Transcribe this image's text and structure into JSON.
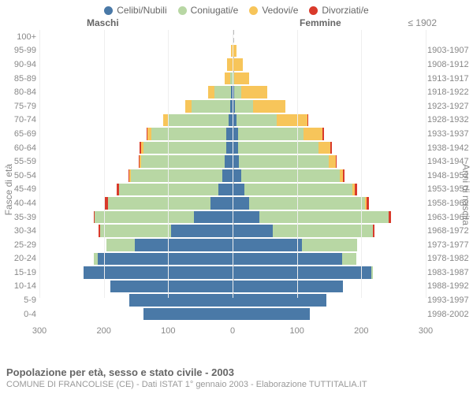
{
  "type": "population-pyramid",
  "legend": [
    {
      "label": "Celibi/Nubili",
      "color": "#4a79a7"
    },
    {
      "label": "Coniugati/e",
      "color": "#b8d7a4"
    },
    {
      "label": "Vedovi/e",
      "color": "#f7c55a"
    },
    {
      "label": "Divorziati/e",
      "color": "#d93a2b"
    }
  ],
  "header": {
    "male": "Maschi",
    "female": "Femmine",
    "birth_top": "≤ 1902"
  },
  "yaxis_left_title": "Fasce di età",
  "yaxis_right_title": "Anni di nascita",
  "xaxis": {
    "max": 300,
    "ticks": [
      300,
      200,
      100,
      0,
      100,
      200,
      300
    ]
  },
  "footer": {
    "title": "Popolazione per età, sesso e stato civile - 2003",
    "sub": "COMUNE DI FRANCOLISE (CE) - Dati ISTAT 1° gennaio 2003 - Elaborazione TUTTITALIA.IT"
  },
  "colors": {
    "single": "#4a79a7",
    "married": "#b8d7a4",
    "widowed": "#f7c55a",
    "divorced": "#d93a2b",
    "bg": "#ffffff",
    "grid": "#eeeeee",
    "centerline": "#bbbbbb",
    "text": "#888888"
  },
  "rows": [
    {
      "age": "100+",
      "birth": "",
      "m": [
        0,
        0,
        0,
        0
      ],
      "f": [
        0,
        0,
        0,
        0
      ]
    },
    {
      "age": "95-99",
      "birth": "1903-1907",
      "m": [
        0,
        0,
        2,
        0
      ],
      "f": [
        0,
        0,
        6,
        0
      ]
    },
    {
      "age": "90-94",
      "birth": "1908-1912",
      "m": [
        0,
        0,
        8,
        0
      ],
      "f": [
        0,
        0,
        16,
        0
      ]
    },
    {
      "age": "85-89",
      "birth": "1913-1917",
      "m": [
        0,
        4,
        8,
        0
      ],
      "f": [
        0,
        2,
        24,
        0
      ]
    },
    {
      "age": "80-84",
      "birth": "1918-1922",
      "m": [
        2,
        26,
        10,
        0
      ],
      "f": [
        2,
        12,
        40,
        0
      ]
    },
    {
      "age": "75-79",
      "birth": "1923-1927",
      "m": [
        4,
        60,
        10,
        0
      ],
      "f": [
        4,
        28,
        50,
        0
      ]
    },
    {
      "age": "70-74",
      "birth": "1928-1932",
      "m": [
        6,
        94,
        8,
        0
      ],
      "f": [
        6,
        62,
        48,
        2
      ]
    },
    {
      "age": "65-69",
      "birth": "1933-1937",
      "m": [
        10,
        116,
        6,
        2
      ],
      "f": [
        8,
        102,
        30,
        2
      ]
    },
    {
      "age": "60-64",
      "birth": "1938-1942",
      "m": [
        10,
        128,
        4,
        2
      ],
      "f": [
        8,
        126,
        18,
        2
      ]
    },
    {
      "age": "55-59",
      "birth": "1943-1947",
      "m": [
        12,
        130,
        2,
        2
      ],
      "f": [
        10,
        140,
        10,
        2
      ]
    },
    {
      "age": "50-54",
      "birth": "1948-1952",
      "m": [
        16,
        142,
        2,
        2
      ],
      "f": [
        14,
        152,
        6,
        2
      ]
    },
    {
      "age": "45-49",
      "birth": "1953-1957",
      "m": [
        22,
        154,
        0,
        4
      ],
      "f": [
        18,
        168,
        4,
        4
      ]
    },
    {
      "age": "40-44",
      "birth": "1958-1962",
      "m": [
        34,
        160,
        0,
        4
      ],
      "f": [
        26,
        180,
        2,
        4
      ]
    },
    {
      "age": "35-39",
      "birth": "1963-1967",
      "m": [
        60,
        154,
        0,
        2
      ],
      "f": [
        42,
        200,
        0,
        4
      ]
    },
    {
      "age": "30-34",
      "birth": "1968-1972",
      "m": [
        96,
        110,
        0,
        2
      ],
      "f": [
        62,
        156,
        0,
        2
      ]
    },
    {
      "age": "25-29",
      "birth": "1973-1977",
      "m": [
        152,
        44,
        0,
        0
      ],
      "f": [
        108,
        86,
        0,
        0
      ]
    },
    {
      "age": "20-24",
      "birth": "1978-1982",
      "m": [
        210,
        6,
        0,
        0
      ],
      "f": [
        170,
        22,
        0,
        0
      ]
    },
    {
      "age": "15-19",
      "birth": "1983-1987",
      "m": [
        232,
        0,
        0,
        0
      ],
      "f": [
        216,
        2,
        0,
        0
      ]
    },
    {
      "age": "10-14",
      "birth": "1988-1992",
      "m": [
        190,
        0,
        0,
        0
      ],
      "f": [
        172,
        0,
        0,
        0
      ]
    },
    {
      "age": "5-9",
      "birth": "1993-1997",
      "m": [
        160,
        0,
        0,
        0
      ],
      "f": [
        146,
        0,
        0,
        0
      ]
    },
    {
      "age": "0-4",
      "birth": "1998-2002",
      "m": [
        138,
        0,
        0,
        0
      ],
      "f": [
        120,
        0,
        0,
        0
      ]
    }
  ]
}
